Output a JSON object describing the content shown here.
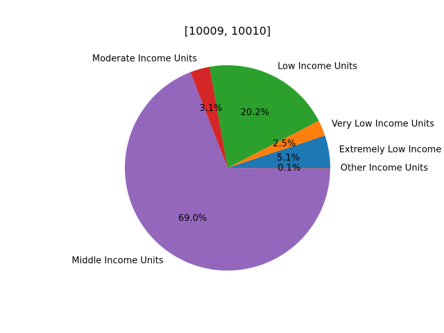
{
  "chart_data": {
    "type": "pie",
    "title": "[10009, 10010]",
    "categories": [
      "Extremely Low Income Units",
      "Very Low Income Units",
      "Low Income Units",
      "Moderate Income Units",
      "Middle Income Units",
      "Other Income Units"
    ],
    "values": [
      5.1,
      2.5,
      20.2,
      3.1,
      69.0,
      0.1
    ],
    "percent_labels": [
      "5.1%",
      "2.5%",
      "20.2%",
      "3.1%",
      "69.0%",
      "0.1%"
    ],
    "colors": [
      "#1f77b4",
      "#ff7f0e",
      "#2ca02c",
      "#d62728",
      "#9467bd",
      "#8c564b"
    ],
    "start_angle_deg": 0,
    "direction": "counterclockwise",
    "legend": "none"
  }
}
